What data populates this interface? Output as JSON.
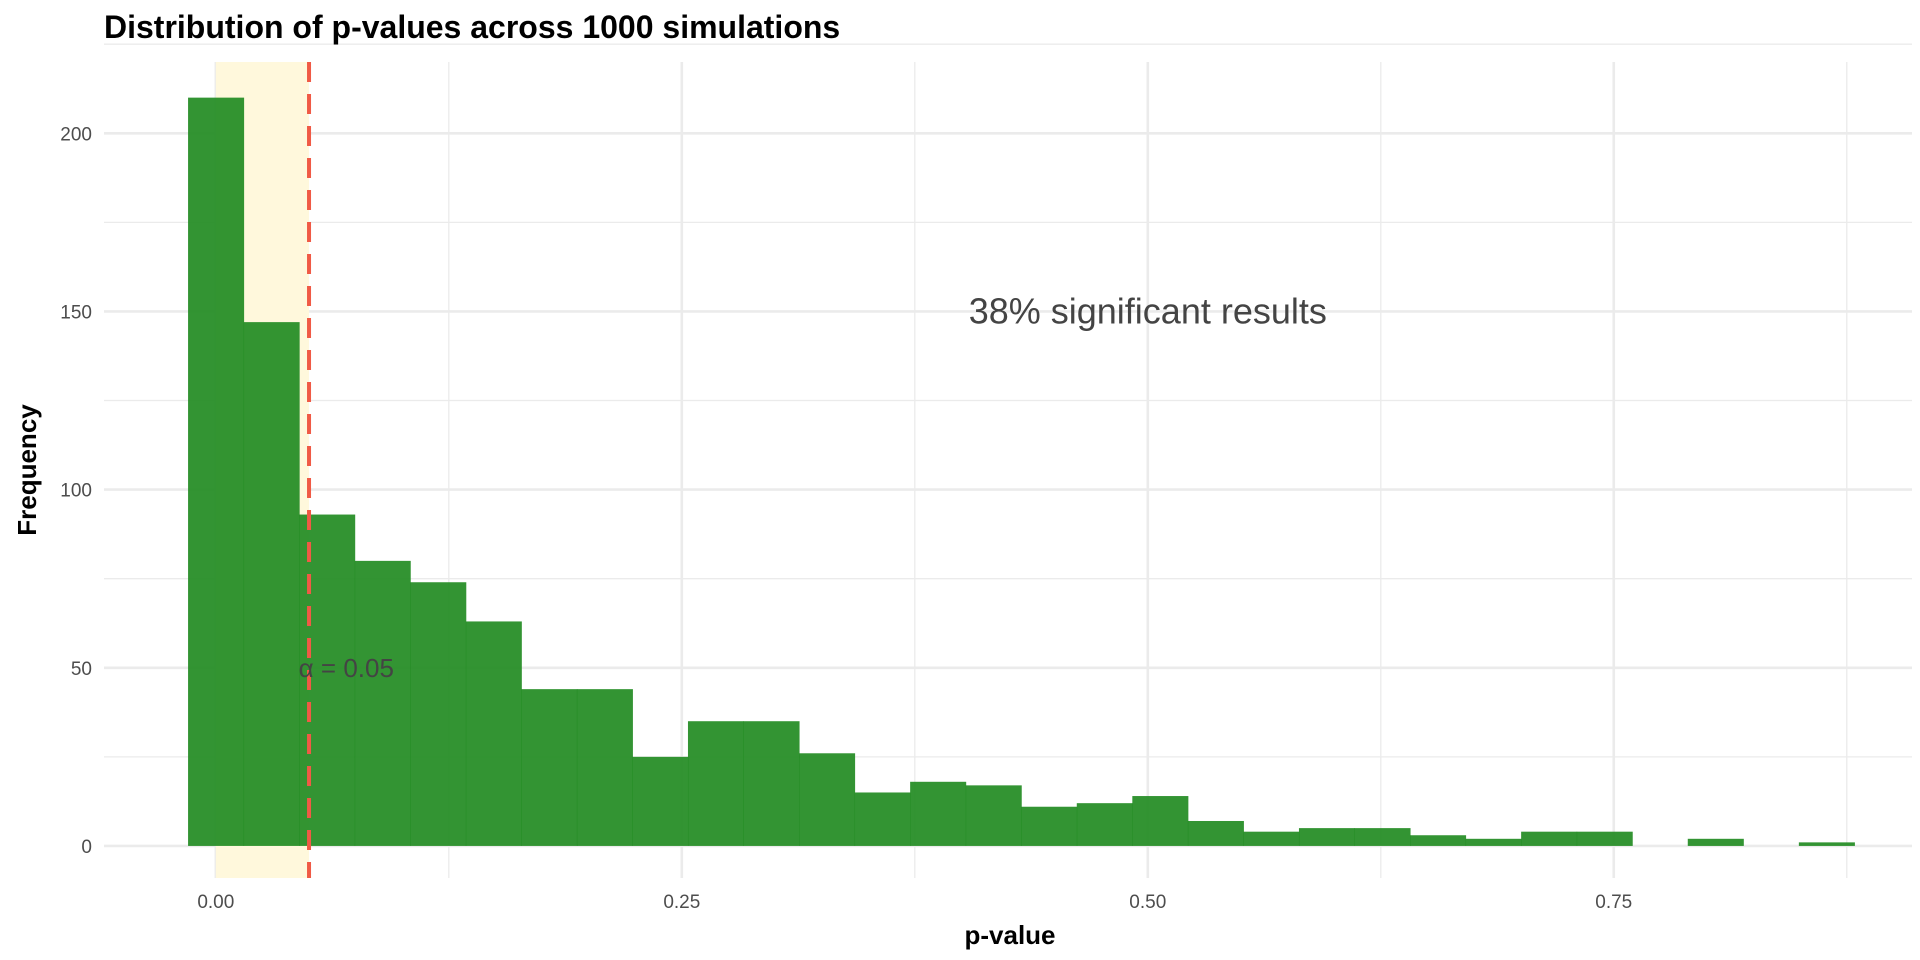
{
  "chart_data": {
    "type": "bar",
    "title": "Distribution of p-values across 1000 simulations",
    "xlabel": "p-value",
    "ylabel": "Frequency",
    "xlim": [
      -0.06,
      0.91
    ],
    "ylim": [
      -9,
      220
    ],
    "x_ticks": [
      0.0,
      0.25,
      0.5,
      0.75
    ],
    "x_tick_labels": [
      "0.00",
      "0.25",
      "0.50",
      "0.75"
    ],
    "y_ticks": [
      0,
      50,
      100,
      150,
      200
    ],
    "y_tick_labels": [
      "0",
      "50",
      "100",
      "150",
      "200"
    ],
    "grid": true,
    "bin_width": 0.0298,
    "bins": [
      {
        "x0": -0.0149,
        "count": 210
      },
      {
        "x0": 0.0149,
        "count": 147
      },
      {
        "x0": 0.0447,
        "count": 93
      },
      {
        "x0": 0.0745,
        "count": 80
      },
      {
        "x0": 0.1043,
        "count": 74
      },
      {
        "x0": 0.1341,
        "count": 63
      },
      {
        "x0": 0.1639,
        "count": 44
      },
      {
        "x0": 0.1937,
        "count": 44
      },
      {
        "x0": 0.2235,
        "count": 25
      },
      {
        "x0": 0.2533,
        "count": 35
      },
      {
        "x0": 0.2831,
        "count": 35
      },
      {
        "x0": 0.3129,
        "count": 26
      },
      {
        "x0": 0.3427,
        "count": 15
      },
      {
        "x0": 0.3725,
        "count": 18
      },
      {
        "x0": 0.4023,
        "count": 17
      },
      {
        "x0": 0.4321,
        "count": 11
      },
      {
        "x0": 0.4619,
        "count": 12
      },
      {
        "x0": 0.4917,
        "count": 14
      },
      {
        "x0": 0.5215,
        "count": 7
      },
      {
        "x0": 0.5513,
        "count": 4
      },
      {
        "x0": 0.5811,
        "count": 5
      },
      {
        "x0": 0.6109,
        "count": 5
      },
      {
        "x0": 0.6407,
        "count": 3
      },
      {
        "x0": 0.6705,
        "count": 2
      },
      {
        "x0": 0.7003,
        "count": 4
      },
      {
        "x0": 0.7301,
        "count": 4
      },
      {
        "x0": 0.7599,
        "count": 0
      },
      {
        "x0": 0.7897,
        "count": 2
      },
      {
        "x0": 0.8195,
        "count": 0
      },
      {
        "x0": 0.8493,
        "count": 1
      }
    ],
    "significance_region": {
      "from": 0.0,
      "to": 0.05,
      "color": "#fff8dc"
    },
    "threshold_line": {
      "x": 0.05,
      "color": "#f05a45",
      "style": "dashed"
    },
    "threshold_label": {
      "text": "α = 0.05",
      "x": 0.07,
      "y": 50
    },
    "annotation": {
      "text": "38% significant results",
      "x": 0.5,
      "y": 150
    },
    "colors": {
      "bar": "#228b22",
      "grid": "#ebebeb"
    }
  }
}
